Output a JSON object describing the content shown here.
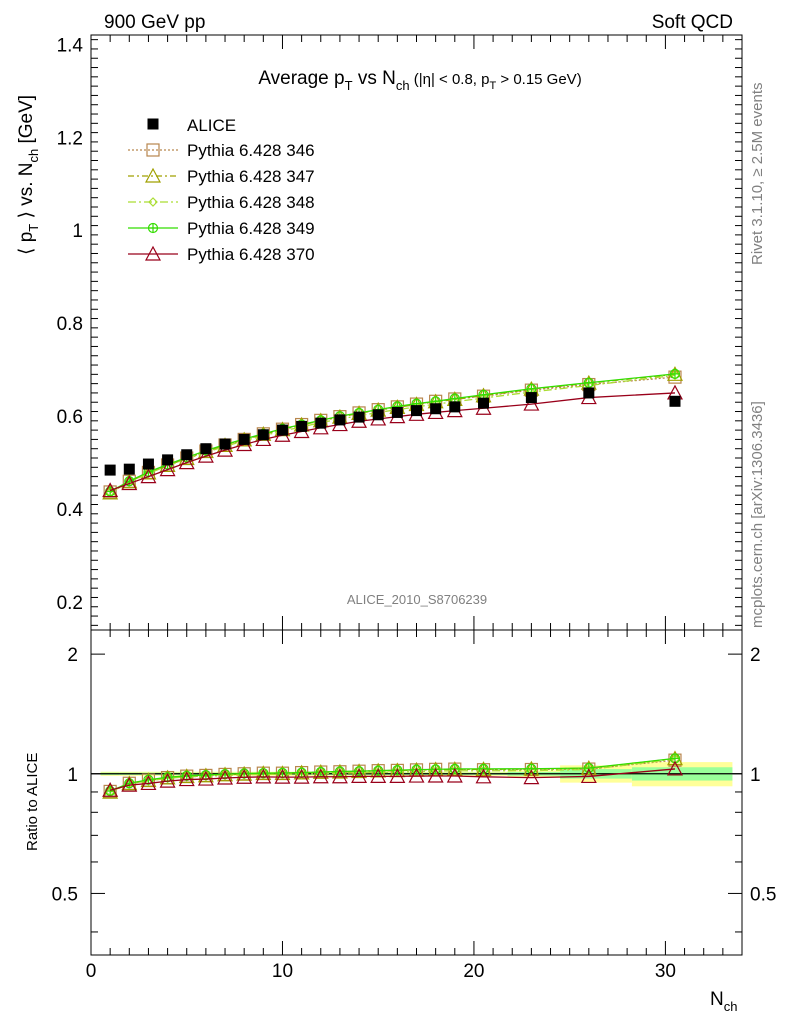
{
  "header": {
    "left": "900 GeV pp",
    "right": "Soft QCD"
  },
  "side_labels": {
    "top": "Rivet 3.1.10, ≥ 2.5M events",
    "bottom": "mcplots.cern.ch [arXiv:1306.3436]"
  },
  "chart_data": {
    "type": "line",
    "title_main": "Average p",
    "title_sub1": "T",
    "title_mid": " vs N",
    "title_sub2": "ch",
    "title_tail": " (|η| < 0.8, p",
    "title_sub3": "T",
    "title_end": " > 0.15 GeV)",
    "watermark": "ALICE_2010_S8706239",
    "ylabel_main": "⟨ p",
    "ylabel_sub1": "T",
    "ylabel_mid": " ⟩ vs. N",
    "ylabel_sub2": "ch",
    "ylabel_end": " [GeV]",
    "xlabel_main": "N",
    "xlabel_sub": "ch",
    "ratio_ylabel": "Ratio to ALICE",
    "xlim": [
      0,
      34
    ],
    "ylim": [
      0.14,
      1.42
    ],
    "ratio_ylim": [
      0.35,
      2.3
    ],
    "x_ticks": [
      "0",
      "10",
      "20",
      "30"
    ],
    "y_ticks": [
      "0.2",
      "0.4",
      "0.6",
      "0.8",
      "1",
      "1.2",
      "1.4"
    ],
    "ratio_ticks": [
      "0.5",
      "1",
      "2"
    ],
    "x": [
      1,
      2,
      3,
      4,
      5,
      6,
      7,
      8,
      9,
      10,
      11,
      12,
      13,
      14,
      15,
      16,
      17,
      18,
      19,
      20.5,
      23,
      26,
      30.5
    ],
    "data": {
      "name": "ALICE",
      "color": "#000000",
      "values": [
        0.484,
        0.486,
        0.497,
        0.506,
        0.517,
        0.53,
        0.54,
        0.55,
        0.56,
        0.57,
        0.578,
        0.585,
        0.592,
        0.598,
        0.603,
        0.608,
        0.612,
        0.616,
        0.62,
        0.628,
        0.64,
        0.65,
        0.632
      ]
    },
    "series": [
      {
        "name": "Pythia 6.428 346",
        "color": "#b8864d",
        "marker": "square",
        "dash": "2,2",
        "values": [
          0.437,
          0.46,
          0.479,
          0.495,
          0.51,
          0.525,
          0.538,
          0.55,
          0.562,
          0.572,
          0.582,
          0.591,
          0.599,
          0.607,
          0.614,
          0.62,
          0.626,
          0.632,
          0.637,
          0.643,
          0.656,
          0.668,
          0.684
        ]
      },
      {
        "name": "Pythia 6.428 347",
        "color": "#a0a000",
        "marker": "triangle",
        "dash": "6,3,2,3",
        "values": [
          0.435,
          0.459,
          0.478,
          0.494,
          0.509,
          0.524,
          0.537,
          0.549,
          0.561,
          0.571,
          0.581,
          0.59,
          0.598,
          0.606,
          0.613,
          0.619,
          0.625,
          0.631,
          0.636,
          0.644,
          0.658,
          0.671,
          0.69
        ]
      },
      {
        "name": "Pythia 6.428 348",
        "color": "#aadd33",
        "marker": "diamond",
        "dash": "8,3,2,3",
        "values": [
          0.436,
          0.458,
          0.477,
          0.493,
          0.508,
          0.522,
          0.535,
          0.547,
          0.558,
          0.568,
          0.577,
          0.586,
          0.594,
          0.601,
          0.608,
          0.614,
          0.62,
          0.626,
          0.631,
          0.639,
          0.652,
          0.666,
          0.688
        ]
      },
      {
        "name": "Pythia 6.428 349",
        "color": "#33dd00",
        "marker": "cross",
        "dash": "",
        "values": [
          0.438,
          0.46,
          0.48,
          0.496,
          0.511,
          0.526,
          0.539,
          0.551,
          0.562,
          0.573,
          0.582,
          0.591,
          0.6,
          0.607,
          0.614,
          0.621,
          0.627,
          0.632,
          0.638,
          0.646,
          0.659,
          0.672,
          0.691
        ]
      },
      {
        "name": "Pythia 6.428 370",
        "color": "#99001a",
        "marker": "triangle",
        "dash": "",
        "values": [
          0.44,
          0.455,
          0.47,
          0.485,
          0.5,
          0.514,
          0.527,
          0.539,
          0.55,
          0.559,
          0.567,
          0.575,
          0.582,
          0.589,
          0.594,
          0.599,
          0.604,
          0.608,
          0.612,
          0.617,
          0.626,
          0.64,
          0.65
        ]
      }
    ]
  }
}
